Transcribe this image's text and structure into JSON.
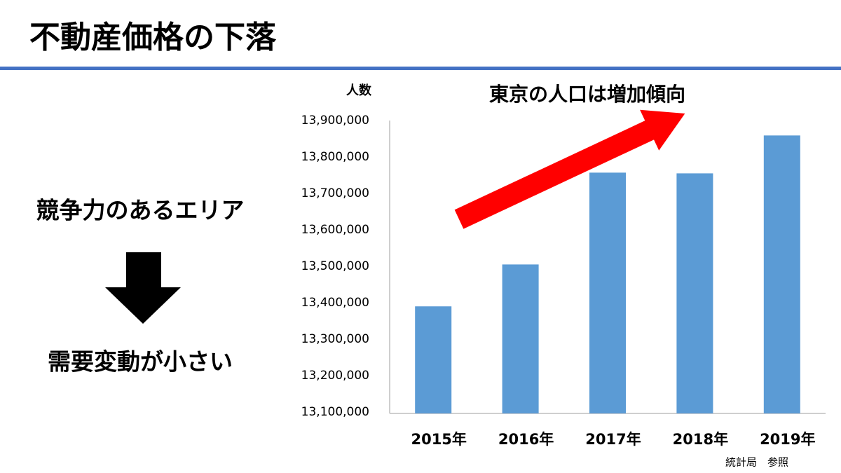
{
  "slide": {
    "title": "不動産価格の下落",
    "point": "競争力のあるエリア",
    "result": "需要変動が小さい",
    "source": "統計局　参照"
  },
  "chart_data": {
    "type": "bar",
    "title": "東京の人口は増加傾向",
    "y_label": "人数",
    "categories": [
      "2015年",
      "2016年",
      "2017年",
      "2018年",
      "2019年"
    ],
    "values": [
      13390000,
      13505000,
      13757000,
      13755000,
      13859000
    ],
    "color": "#5b9bd5",
    "ylim": [
      13100000,
      13900000
    ],
    "yticks": [
      {
        "value": 13100000,
        "label": "13,100,000"
      },
      {
        "value": 13200000,
        "label": "13,200,000"
      },
      {
        "value": 13300000,
        "label": "13,300,000"
      },
      {
        "value": 13400000,
        "label": "13,400,000"
      },
      {
        "value": 13500000,
        "label": "13,500,000"
      },
      {
        "value": 13600000,
        "label": "13,600,000"
      },
      {
        "value": 13700000,
        "label": "13,700,000"
      },
      {
        "value": 13800000,
        "label": "13,800,000"
      },
      {
        "value": 13900000,
        "label": "13,900,000"
      }
    ],
    "grid": false
  }
}
